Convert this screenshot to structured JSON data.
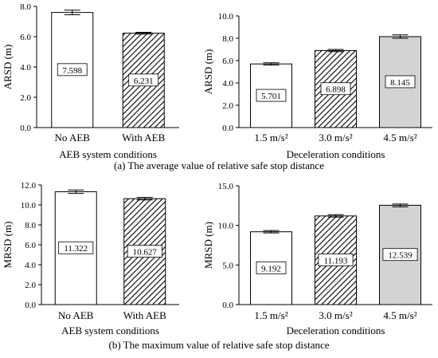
{
  "captions": {
    "a": "(a) The average value of relative safe stop distance",
    "b": "(b) The maximum value of relative safe stop distance"
  },
  "colors": {
    "bar_fill_light": "#ffffff",
    "bar_fill_gray": "#d3d3d3",
    "axis": "#000000",
    "hatch": "#000000"
  },
  "chart_data": [
    {
      "type": "bar",
      "panel": "a-left",
      "title": "",
      "xlabel": "AEB system conditions",
      "ylabel": "ARSD (m)",
      "categories": [
        "No AEB",
        "With AEB"
      ],
      "values": [
        7.598,
        6.231
      ],
      "value_labels": [
        "7.598",
        "6.231"
      ],
      "error_upper": [
        7.75,
        6.29
      ],
      "error_lower": [
        7.45,
        6.17
      ],
      "fills": [
        "white",
        "hatch"
      ],
      "ylim": [
        0,
        8.0
      ],
      "yticks": [
        0,
        2,
        4,
        6,
        8
      ],
      "ytick_labels": [
        "0.0",
        "2.0",
        "4.0",
        "6.0",
        "8.0"
      ],
      "grid": false
    },
    {
      "type": "bar",
      "panel": "a-right",
      "title": "",
      "xlabel": "Deceleration conditions",
      "ylabel": "ARSD (m)",
      "categories": [
        "1.5 m/s²",
        "3.0 m/s²",
        "4.5 m/s²"
      ],
      "values": [
        5.701,
        6.898,
        8.145
      ],
      "value_labels": [
        "5.701",
        "6.898",
        "8.145"
      ],
      "error_upper": [
        5.8,
        7.0,
        8.3
      ],
      "error_lower": [
        5.6,
        6.8,
        8.0
      ],
      "fills": [
        "white",
        "hatch",
        "gray"
      ],
      "ylim": [
        0,
        10.0
      ],
      "yticks": [
        0,
        2,
        4,
        6,
        8,
        10
      ],
      "ytick_labels": [
        "0.0",
        "2.0",
        "4.0",
        "6.0",
        "8.0",
        "10.0"
      ],
      "grid": false
    },
    {
      "type": "bar",
      "panel": "b-left",
      "title": "",
      "xlabel": "AEB system conditions",
      "ylabel": "MRSD (m)",
      "categories": [
        "No AEB",
        "With AEB"
      ],
      "values": [
        11.322,
        10.627
      ],
      "value_labels": [
        "11.322",
        "10.627"
      ],
      "error_upper": [
        11.5,
        10.75
      ],
      "error_lower": [
        11.15,
        10.5
      ],
      "fills": [
        "white",
        "hatch"
      ],
      "ylim": [
        0,
        12.0
      ],
      "yticks": [
        0,
        2,
        4,
        6,
        8,
        10,
        12
      ],
      "ytick_labels": [
        "0.0",
        "2.0",
        "4.0",
        "6.0",
        "8.0",
        "10.0",
        "12.0"
      ],
      "grid": false
    },
    {
      "type": "bar",
      "panel": "b-right",
      "title": "",
      "xlabel": "Deceleration conditions",
      "ylabel": "MRSD (m)",
      "categories": [
        "1.5 m/s²",
        "3.0 m/s²",
        "4.5 m/s²"
      ],
      "values": [
        9.192,
        11.193,
        12.539
      ],
      "value_labels": [
        "9.192",
        "11.193",
        "12.539"
      ],
      "error_upper": [
        9.35,
        11.35,
        12.7
      ],
      "error_lower": [
        9.05,
        11.05,
        12.35
      ],
      "fills": [
        "white",
        "hatch",
        "gray"
      ],
      "ylim": [
        0,
        15.0
      ],
      "yticks": [
        0,
        5,
        10,
        15
      ],
      "ytick_labels": [
        "0.0",
        "5.0",
        "10.0",
        "15.0"
      ],
      "grid": false
    }
  ]
}
